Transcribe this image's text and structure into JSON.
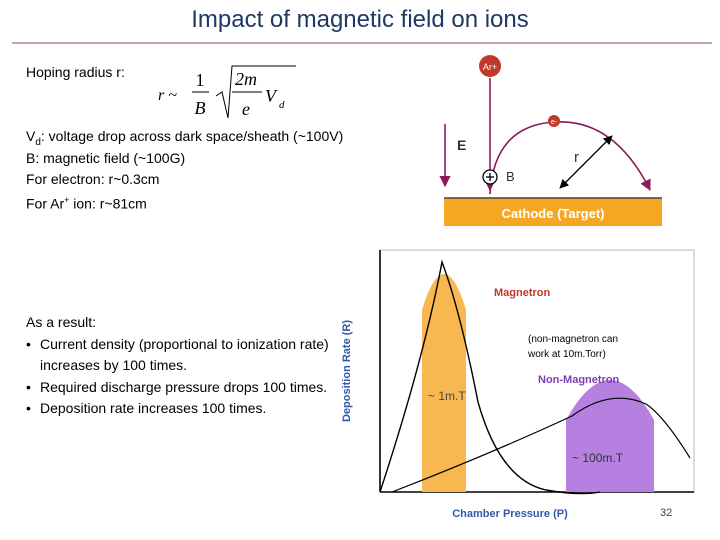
{
  "title": "Impact of magnetic field on ions",
  "radius_label": "Hoping radius r:",
  "formula": {
    "lhs": "r ~",
    "frac1_num": "1",
    "frac1_den": "B",
    "frac2_num": "2m",
    "frac2_den": "e",
    "v": "V",
    "v_sub": "d"
  },
  "defs": {
    "vd_main": "V",
    "vd_sub": "d",
    "vd_rest": ": voltage drop across dark space/sheath (~100V)",
    "b_line": "B: magnetic field (~100G)",
    "electron_line": "For electron: r~0.3cm",
    "ion_pre": "For Ar",
    "ion_sup": "+",
    "ion_post": " ion: r~81cm"
  },
  "result": {
    "heading": "As a result:",
    "items": [
      "Current density (proportional to ionization rate) increases by 100 times.",
      "Required discharge pressure drops 100 times.",
      "Deposition rate increases 100 times."
    ]
  },
  "diagram": {
    "ion_label": "Ar+",
    "electron_label": "e-",
    "e_field": "E",
    "b_field": "B",
    "radius": "r",
    "cathode": "Cathode (Target)",
    "colors": {
      "cathode_fill": "#f5a623",
      "arrow": "#8b1a5a",
      "ion_circle": "#c0392b"
    }
  },
  "chart_data": {
    "type": "area",
    "xlabel": "Chamber Pressure (P)",
    "ylabel": "Deposition Rate (R)",
    "series": [
      {
        "name": "Magnetron",
        "peak_label": "~ 1m.T",
        "color": "#f7b851"
      },
      {
        "name": "Non-Magnetron",
        "peak_label": "~ 100m.T",
        "color": "#b580e0"
      }
    ],
    "annotation": "(non-magnetron can work at 10m.Torr)"
  },
  "page_number": "32"
}
